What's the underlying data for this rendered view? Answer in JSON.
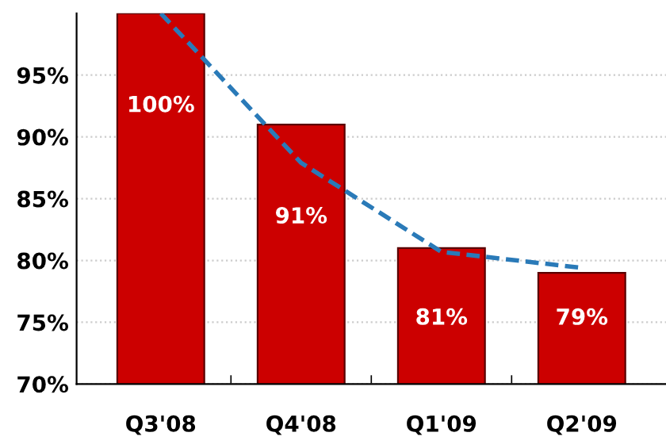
{
  "chart_data": {
    "type": "bar",
    "categories": [
      "Q3'08",
      "Q4'08",
      "Q1'09",
      "Q2'09"
    ],
    "series": [
      {
        "color": "#cc0000",
        "values": [
          100,
          91,
          81,
          79
        ],
        "value_labels": [
          "100%",
          "91%",
          "81%",
          "79%"
        ]
      },
      {
        "type": "line",
        "color": "#2a7ab8",
        "values": [
          100,
          87.9,
          80.7,
          79.4
        ],
        "line_style": "dashed"
      }
    ],
    "ylim": [
      70,
      100
    ],
    "yticks": [
      {
        "value": 70,
        "label": "70%"
      },
      {
        "value": 75,
        "label": "75%"
      },
      {
        "value": 80,
        "label": "80%"
      },
      {
        "value": 85,
        "label": "85%"
      },
      {
        "value": 90,
        "label": "90%"
      },
      {
        "value": 95,
        "label": "95%"
      }
    ],
    "grid": "y"
  }
}
